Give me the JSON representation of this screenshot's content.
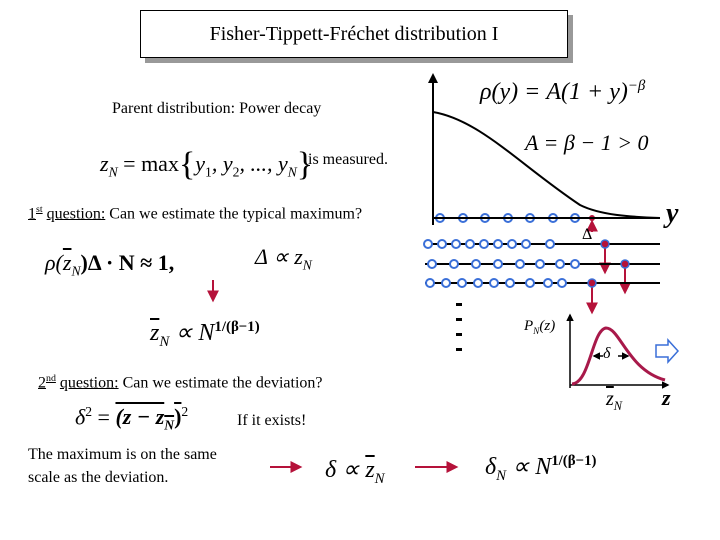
{
  "title": "Fisher-Tippett-Fréchet distribution I",
  "parent_distribution": "Parent distribution: Power decay",
  "formula_max": [
    "z",
    "N",
    " = max",
    "{",
    "y",
    "1",
    ", y",
    "2",
    ", ..., y",
    "N",
    "}"
  ],
  "measured": "is measured.",
  "question_1": {
    "number": "1",
    "ordinal": "st",
    "label": "question:",
    "text": "Can we estimate the typical maximum?"
  },
  "formula_density": [
    "ρ(",
    "z",
    "N",
    ")Δ · N ≈ 1,"
  ],
  "formula_delta": [
    "Δ ∝ z",
    "N"
  ],
  "formula_mean": [
    "z",
    "N",
    " ∝ N",
    "1/(β−1)"
  ],
  "question_2": {
    "number": "2",
    "ordinal": "nd",
    "label": "question:",
    "text": "Can we estimate the deviation?"
  },
  "formula_deviation": [
    "δ",
    "2",
    " = ",
    "(z − z",
    "N",
    ")",
    "2"
  ],
  "exists_note": "If it exists!",
  "conclusion": [
    "The maximum is on the same",
    "scale as the deviation."
  ],
  "formula_scale": [
    "δ ∝ ",
    "z",
    "N"
  ],
  "formula_result": [
    "δ",
    "N",
    " ∝ N",
    "1/(β−1)"
  ],
  "formula_parent": [
    "ρ(y) = A(1 + y)",
    "−β"
  ],
  "formula_constant": "A = β − 1 > 0",
  "axis_y_label": "y",
  "delta_label": "Δ",
  "pdf_label": [
    "P",
    "N",
    "(z)"
  ],
  "width_label": "δ",
  "mean_label": [
    "z",
    "N"
  ],
  "axis_z_label": "z"
}
